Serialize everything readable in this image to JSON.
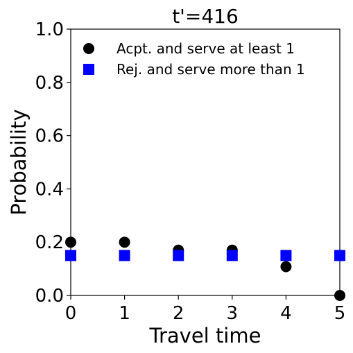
{
  "chart_data": {
    "type": "scatter",
    "title": "t'=416",
    "xlabel": "Travel time",
    "ylabel": "Probability",
    "xlim": [
      0,
      5
    ],
    "ylim": [
      0,
      1
    ],
    "xticks": [
      "0",
      "1",
      "2",
      "3",
      "4",
      "5"
    ],
    "yticks": [
      "0.0",
      "0.2",
      "0.4",
      "0.6",
      "0.8",
      "1.0"
    ],
    "grid": false,
    "legend_position": "top-left",
    "series": [
      {
        "name": "Acpt. and serve at least 1",
        "marker": "circle",
        "color": "#000000",
        "x": [
          0,
          1,
          2,
          3,
          4,
          5
        ],
        "y": [
          0.2,
          0.2,
          0.17,
          0.17,
          0.108,
          0.0
        ]
      },
      {
        "name": "Rej. and serve more than 1",
        "marker": "square",
        "color": "#0000ff",
        "x": [
          0,
          1,
          2,
          3,
          4,
          5
        ],
        "y": [
          0.15,
          0.15,
          0.15,
          0.15,
          0.15,
          0.15
        ]
      }
    ]
  }
}
